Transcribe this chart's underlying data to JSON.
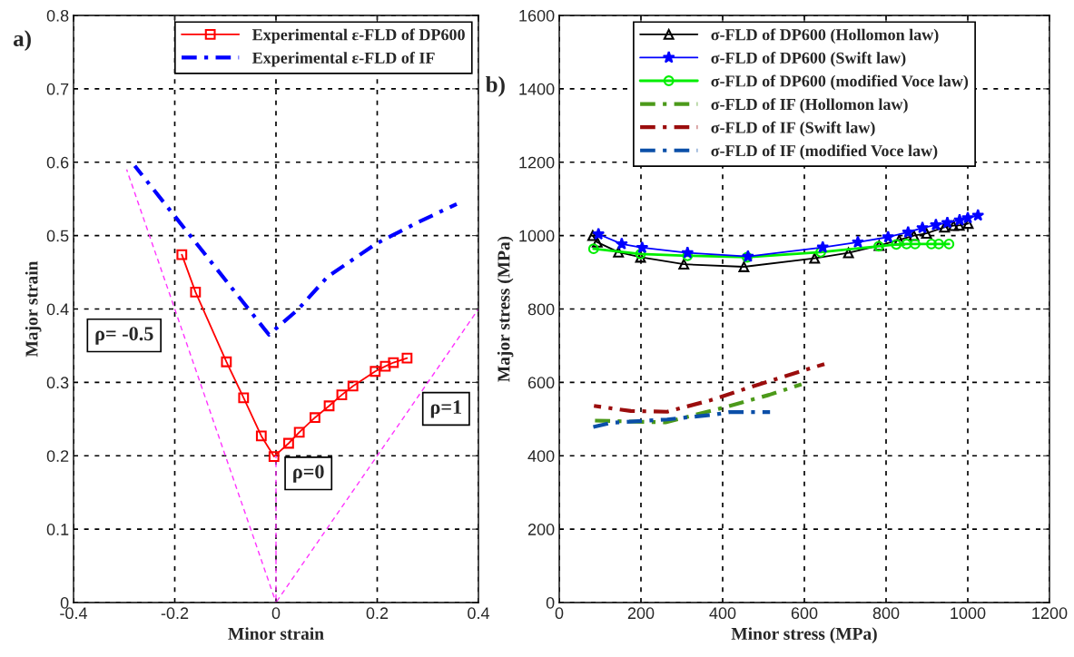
{
  "chart_data": [
    {
      "type": "line",
      "xlabel": "Minor strain",
      "ylabel": "Major strain",
      "xlim": [
        -0.4,
        0.4
      ],
      "xticks": [
        -0.4,
        -0.2,
        0,
        0.2,
        0.4
      ],
      "ylim": [
        0,
        0.8
      ],
      "yticks": [
        0,
        0.1,
        0.2,
        0.3,
        0.4,
        0.5,
        0.6,
        0.7,
        0.8
      ],
      "grid": true,
      "legend": "top right",
      "annotations": [
        "a)",
        "ρ= -0.5",
        "ρ=1",
        "ρ=0"
      ],
      "series": [
        {
          "name": "Experimental ε-FLD of DP600",
          "color": "#ff0000",
          "marker": "square",
          "line_style": "solid",
          "x": [
            -0.186,
            -0.159,
            -0.098,
            -0.064,
            -0.029,
            -0.004,
            0.025,
            0.046,
            0.077,
            0.105,
            0.13,
            0.152,
            0.196,
            0.216,
            0.232,
            0.259
          ],
          "values": [
            0.474,
            0.423,
            0.328,
            0.279,
            0.227,
            0.199,
            0.217,
            0.232,
            0.252,
            0.268,
            0.283,
            0.295,
            0.315,
            0.322,
            0.327,
            0.333
          ]
        },
        {
          "name": "Experimental ε-FLD of IF",
          "color": "#0000ff",
          "marker": "none",
          "line_style": "dashdot",
          "x": [
            -0.279,
            -0.166,
            -0.014,
            0.043,
            0.102,
            0.198,
            0.28,
            0.357
          ],
          "values": [
            0.595,
            0.497,
            0.365,
            0.399,
            0.444,
            0.489,
            0.518,
            0.543
          ]
        },
        {
          "color": "#ff33ff",
          "marker": "none",
          "line_style": "dashed",
          "x": [
            0,
            -0.295
          ],
          "values": [
            0,
            0.59
          ]
        },
        {
          "color": "#ff33ff",
          "marker": "none",
          "line_style": "dashed",
          "x": [
            0,
            0.4
          ],
          "values": [
            0,
            0.4
          ]
        },
        {
          "color": "#ff33ff",
          "marker": "none",
          "line_style": "dashed",
          "x": [
            0,
            0
          ],
          "values": [
            0,
            0.2
          ]
        }
      ]
    },
    {
      "type": "line",
      "xlabel": "Minor stress (MPa)",
      "ylabel": "Major stress (MPa)",
      "xlim": [
        0,
        1200
      ],
      "xticks": [
        0,
        200,
        400,
        600,
        800,
        1000,
        1200
      ],
      "ylim": [
        0,
        1600
      ],
      "yticks": [
        0,
        200,
        400,
        600,
        800,
        1000,
        1200,
        1400,
        1600
      ],
      "grid": true,
      "legend": "top",
      "annotations": [
        "b)"
      ],
      "series": [
        {
          "name": "σ-FLD of DP600 (Hollomon law)",
          "color": "#000000",
          "marker": "triangle",
          "line_style": "solid",
          "x": [
            82,
            93,
            145,
            199,
            305,
            452,
            625,
            708,
            783,
            832,
            868,
            899,
            943,
            965,
            979,
            1001
          ],
          "values": [
            1000,
            982,
            955,
            941,
            922,
            915,
            938,
            953,
            973,
            988,
            1000,
            1006,
            1023,
            1027,
            1028,
            1033
          ]
        },
        {
          "name": "σ-FLD of DP600 (Swift law)",
          "color": "#0000ff",
          "marker": "star",
          "line_style": "solid",
          "x": [
            96,
            153,
            203,
            314,
            462,
            645,
            731,
            805,
            854,
            889,
            922,
            950,
            980,
            1000,
            1025
          ],
          "values": [
            1004,
            977,
            967,
            953,
            943,
            968,
            982,
            996,
            1009,
            1021,
            1029,
            1035,
            1042,
            1048,
            1055
          ]
        },
        {
          "name": "σ-FLD of DP600 (modified Voce law)",
          "color": "#00ee00",
          "marker": "circle",
          "line_style": "solid",
          "x": [
            84,
            199,
            314,
            460,
            640,
            782,
            825,
            850,
            871,
            911,
            929,
            954
          ],
          "values": [
            964,
            950,
            945,
            941,
            955,
            971,
            976,
            977,
            977,
            977,
            977,
            977
          ]
        },
        {
          "name": "σ-FLD of IF (Hollomon law)",
          "color": "#4c9a1a",
          "marker": "none",
          "line_style": "dashdot",
          "x": [
            78,
            260,
            401,
            514,
            593
          ],
          "values": [
            496,
            491,
            531,
            566,
            595
          ]
        },
        {
          "name": "σ-FLD of IF (Swift law)",
          "color": "#9b0d0d",
          "marker": "none",
          "line_style": "dashdot",
          "x": [
            85,
            175,
            264,
            369,
            490,
            649
          ],
          "values": [
            536,
            522,
            520,
            551,
            595,
            650
          ]
        },
        {
          "name": "σ-FLD of IF (modified Voce law)",
          "color": "#0b4fa8",
          "marker": "none",
          "line_style": "dashdot",
          "x": [
            74,
            127,
            264,
            385,
            417,
            516
          ],
          "values": [
            476,
            490,
            499,
            513,
            519,
            519
          ]
        }
      ]
    }
  ]
}
